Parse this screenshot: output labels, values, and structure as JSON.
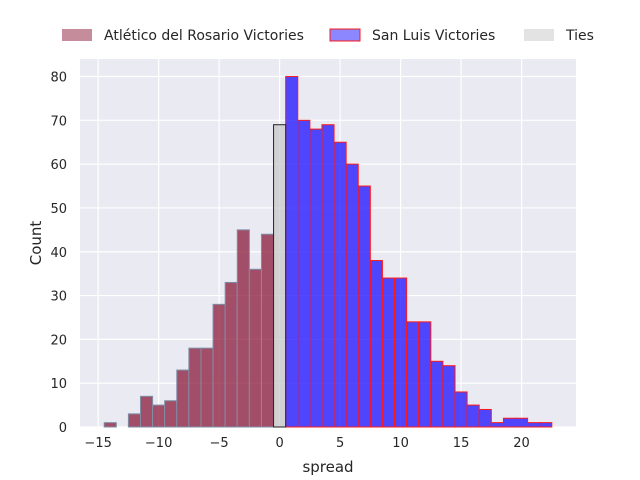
{
  "chart_data": {
    "type": "bar",
    "title": "",
    "xlabel": "spread",
    "ylabel": "Count",
    "xlim": [
      -16.5,
      24.5
    ],
    "ylim": [
      0,
      84
    ],
    "xticks": [
      -15,
      -10,
      -5,
      0,
      5,
      10,
      15,
      20
    ],
    "yticks": [
      0,
      10,
      20,
      30,
      40,
      50,
      60,
      70,
      80
    ],
    "grid": true,
    "background": "#eaeaf2",
    "legend": {
      "placement": "top",
      "columns": 3
    },
    "bin_width": 1,
    "series": [
      {
        "name": "Atlético del Rosario Victories",
        "fill": "#8b1a3a",
        "edge": "#7f8fa6",
        "x": [
          -14,
          -13,
          -12,
          -11,
          -10,
          -9,
          -8,
          -7,
          -6,
          -5,
          -4,
          -3,
          -2,
          -1
        ],
        "values": [
          1,
          0,
          3,
          7,
          5,
          6,
          13,
          18,
          18,
          28,
          33,
          45,
          36,
          44
        ]
      },
      {
        "name": "San Luis Victories",
        "fill": "#1a0dff",
        "edge": "#ff1a1a",
        "x": [
          1,
          2,
          3,
          4,
          5,
          6,
          7,
          8,
          9,
          10,
          11,
          12,
          13,
          14,
          15,
          16,
          17,
          18,
          19,
          20,
          21,
          22
        ],
        "values": [
          80,
          70,
          68,
          69,
          65,
          60,
          55,
          38,
          34,
          34,
          24,
          24,
          15,
          14,
          8,
          5,
          4,
          1,
          2,
          2,
          1,
          1
        ]
      },
      {
        "name": "Ties",
        "fill": "#c8c8c8",
        "edge": "#222222",
        "x": [
          0
        ],
        "values": [
          69
        ]
      }
    ]
  }
}
